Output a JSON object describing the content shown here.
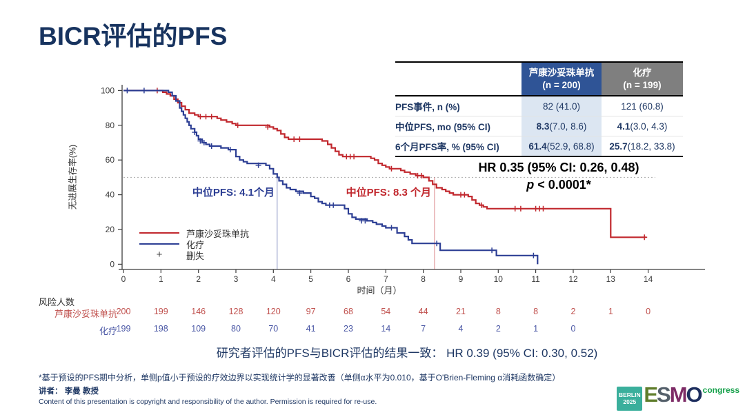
{
  "slide": {
    "title": "BICR评估的PFS"
  },
  "summary_table": {
    "col1_name": "芦康沙妥珠单抗",
    "col1_n": "(n = 200)",
    "col2_name": "化疗",
    "col2_n": "(n = 199)",
    "header_bg_col1": "#2F5496",
    "header_bg_col2": "#7F7F7F",
    "body_bg_col1": "#DCE6F2",
    "rows": [
      {
        "label": "PFS事件, n (%)",
        "c1_bold": "",
        "c1": "82 (41.0)",
        "c2_bold": "",
        "c2": "121 (60.8)"
      },
      {
        "label": "中位PFS, mo (95% CI)",
        "c1_bold": "8.3",
        "c1": " (7.0, 8.6)",
        "c2_bold": "4.1",
        "c2": " (3.0, 4.3)"
      },
      {
        "label": "6个月PFS率, %  (95% CI)",
        "c1_bold": "61.4",
        "c1": " (52.9, 68.8)",
        "c2_bold": "25.7",
        "c2": " (18.2, 33.8)"
      }
    ]
  },
  "hr_block": {
    "line1": "HR 0.35 (95% CI: 0.26, 0.48)",
    "p_italic": "p",
    "p_rest": " < 0.0001*"
  },
  "chart_data": {
    "type": "line",
    "subtype": "kaplan-meier",
    "xlabel": "时间（月）",
    "ylabel": "无进展生存率(%)",
    "xlim": [
      0,
      14
    ],
    "ylim": [
      0,
      100
    ],
    "x_ticks": [
      0,
      1,
      2,
      3,
      4,
      5,
      6,
      7,
      8,
      9,
      10,
      11,
      12,
      13,
      14
    ],
    "y_ticks": [
      0,
      20,
      40,
      60,
      80,
      100
    ],
    "reference_line_y": 50,
    "legend": {
      "censor_label": "删失",
      "censor_symbol": "+"
    },
    "series": [
      {
        "name": "芦康沙妥珠单抗",
        "color": "#C1272D",
        "median_pfs": 8.3,
        "median_label": "中位PFS: 8.3 个月",
        "steps": [
          [
            0,
            100
          ],
          [
            1.05,
            99
          ],
          [
            1.15,
            98
          ],
          [
            1.25,
            97
          ],
          [
            1.35,
            95
          ],
          [
            1.45,
            93
          ],
          [
            1.55,
            91
          ],
          [
            1.65,
            89
          ],
          [
            1.75,
            87
          ],
          [
            1.9,
            86
          ],
          [
            2.0,
            85
          ],
          [
            2.5,
            84
          ],
          [
            2.6,
            83
          ],
          [
            2.75,
            82
          ],
          [
            2.9,
            81
          ],
          [
            3.0,
            80
          ],
          [
            3.9,
            79
          ],
          [
            4.0,
            78
          ],
          [
            4.1,
            77
          ],
          [
            4.2,
            75
          ],
          [
            4.3,
            73
          ],
          [
            4.4,
            72
          ],
          [
            5.3,
            71
          ],
          [
            5.45,
            69
          ],
          [
            5.55,
            67
          ],
          [
            5.65,
            65
          ],
          [
            5.75,
            63
          ],
          [
            5.85,
            62
          ],
          [
            6.6,
            61
          ],
          [
            6.7,
            60
          ],
          [
            6.8,
            58
          ],
          [
            6.9,
            57
          ],
          [
            7.0,
            56
          ],
          [
            7.1,
            55
          ],
          [
            7.4,
            54
          ],
          [
            7.5,
            53
          ],
          [
            7.65,
            52
          ],
          [
            7.8,
            51
          ],
          [
            8.0,
            50
          ],
          [
            8.15,
            48
          ],
          [
            8.25,
            46
          ],
          [
            8.35,
            44
          ],
          [
            8.5,
            43
          ],
          [
            8.6,
            42
          ],
          [
            8.7,
            41
          ],
          [
            8.8,
            40
          ],
          [
            9.2,
            39
          ],
          [
            9.3,
            37
          ],
          [
            9.4,
            35
          ],
          [
            9.5,
            34
          ],
          [
            9.6,
            33
          ],
          [
            9.7,
            32
          ],
          [
            13.0,
            15.5
          ],
          [
            13.95,
            15.5
          ]
        ],
        "censors": [
          [
            0.9,
            100
          ],
          [
            2.05,
            85
          ],
          [
            2.2,
            85
          ],
          [
            2.35,
            85
          ],
          [
            3.05,
            80
          ],
          [
            3.85,
            79
          ],
          [
            4.55,
            72
          ],
          [
            4.7,
            72
          ],
          [
            5.95,
            62
          ],
          [
            6.05,
            62
          ],
          [
            6.15,
            62
          ],
          [
            7.15,
            55
          ],
          [
            7.85,
            51
          ],
          [
            7.95,
            51
          ],
          [
            9.0,
            40
          ],
          [
            9.1,
            40
          ],
          [
            9.55,
            34
          ],
          [
            10.45,
            32
          ],
          [
            10.6,
            32
          ],
          [
            11.0,
            32
          ],
          [
            11.1,
            32
          ],
          [
            11.2,
            32
          ],
          [
            13.9,
            15.5
          ]
        ]
      },
      {
        "name": "化疗",
        "color": "#2C3E94",
        "median_pfs": 4.1,
        "median_label": "中位PFS: 4.1个月",
        "steps": [
          [
            0,
            100
          ],
          [
            1.2,
            99
          ],
          [
            1.3,
            97
          ],
          [
            1.4,
            94
          ],
          [
            1.5,
            90
          ],
          [
            1.55,
            88
          ],
          [
            1.6,
            86
          ],
          [
            1.65,
            84
          ],
          [
            1.7,
            82
          ],
          [
            1.75,
            80
          ],
          [
            1.8,
            78
          ],
          [
            1.9,
            76
          ],
          [
            1.95,
            74
          ],
          [
            2.0,
            72
          ],
          [
            2.1,
            70
          ],
          [
            2.2,
            69
          ],
          [
            2.3,
            68
          ],
          [
            2.6,
            67
          ],
          [
            2.8,
            66
          ],
          [
            3.0,
            62
          ],
          [
            3.1,
            60
          ],
          [
            3.2,
            59
          ],
          [
            3.3,
            58
          ],
          [
            3.8,
            57
          ],
          [
            3.9,
            55
          ],
          [
            4.0,
            52
          ],
          [
            4.1,
            50
          ],
          [
            4.15,
            48
          ],
          [
            4.25,
            46
          ],
          [
            4.35,
            44
          ],
          [
            4.45,
            43
          ],
          [
            4.6,
            42
          ],
          [
            4.8,
            41
          ],
          [
            5.0,
            39
          ],
          [
            5.1,
            38
          ],
          [
            5.2,
            36
          ],
          [
            5.3,
            35
          ],
          [
            5.4,
            34
          ],
          [
            5.9,
            32
          ],
          [
            6.0,
            29
          ],
          [
            6.1,
            27
          ],
          [
            6.2,
            26
          ],
          [
            6.5,
            25
          ],
          [
            6.65,
            24
          ],
          [
            6.75,
            23
          ],
          [
            6.9,
            22
          ],
          [
            7.0,
            21
          ],
          [
            7.3,
            18
          ],
          [
            7.5,
            16
          ],
          [
            7.6,
            14
          ],
          [
            7.7,
            12
          ],
          [
            8.45,
            8
          ],
          [
            9.95,
            5
          ],
          [
            11.05,
            0
          ]
        ],
        "censors": [
          [
            0.1,
            100
          ],
          [
            0.55,
            100
          ],
          [
            1.9,
            76
          ],
          [
            2.05,
            71
          ],
          [
            2.15,
            70
          ],
          [
            2.35,
            68
          ],
          [
            2.85,
            66
          ],
          [
            3.6,
            57
          ],
          [
            4.7,
            41
          ],
          [
            5.5,
            34
          ],
          [
            5.6,
            34
          ],
          [
            6.35,
            25
          ],
          [
            6.45,
            25
          ],
          [
            7.15,
            21
          ],
          [
            8.36,
            12
          ],
          [
            9.83,
            8
          ],
          [
            10.94,
            5
          ]
        ]
      }
    ],
    "risk_table": {
      "title": "风险人数",
      "rows": [
        {
          "label": "芦康沙妥珠单抗",
          "color": "#C0504D",
          "values": [
            200,
            199,
            146,
            128,
            120,
            97,
            68,
            54,
            44,
            21,
            8,
            8,
            2,
            1,
            0
          ]
        },
        {
          "label": "化疗",
          "color": "#4A57A5",
          "values": [
            199,
            198,
            109,
            80,
            70,
            41,
            23,
            14,
            7,
            4,
            2,
            1,
            0
          ]
        }
      ]
    }
  },
  "statement": "研究者评估的PFS与BICR评估的结果一致： HR 0.39 (95% CI: 0.30, 0.52)",
  "footnote": "*基于预设的PFS期中分析，单侧p值小于预设的疗效边界以实现统计学的显著改善（单侧α水平为0.010，基于O'Brien-Fleming α消耗函数确定）",
  "footer": {
    "speaker": "讲者： 李曼 教授",
    "copyright": "Content of this presentation is copyright and responsibility of the author. Permission is required for re-use."
  },
  "logo": {
    "location": "BERLIN",
    "year": "2025",
    "e": "E",
    "s": "S",
    "m": "M",
    "o": "O",
    "congress": "congress"
  }
}
